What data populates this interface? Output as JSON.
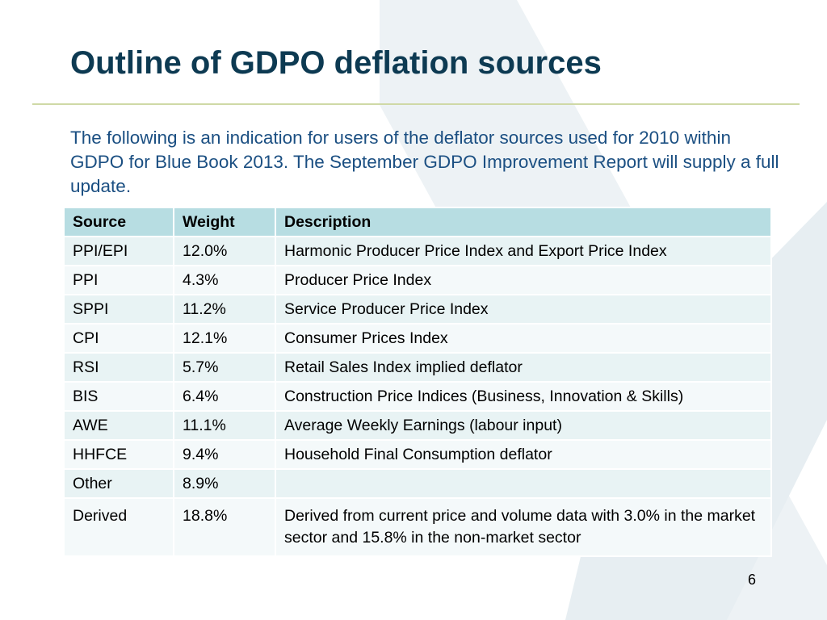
{
  "slide": {
    "title": "Outline of GDPO deflation sources",
    "intro": "The following is an indication for users of the deflator sources used for 2010 within GDPO for Blue Book 2013. The September GDPO Improvement Report will supply a full update.",
    "page_number": "6"
  },
  "table": {
    "headers": [
      "Source",
      "Weight",
      "Description"
    ],
    "rows": [
      {
        "source": "PPI/EPI",
        "weight": "12.0%",
        "description": "Harmonic Producer Price Index and Export Price Index"
      },
      {
        "source": "PPI",
        "weight": "4.3%",
        "description": "Producer Price Index"
      },
      {
        "source": "SPPI",
        "weight": "11.2%",
        "description": "Service Producer Price Index"
      },
      {
        "source": "CPI",
        "weight": "12.1%",
        "description": "Consumer Prices Index"
      },
      {
        "source": "RSI",
        "weight": "5.7%",
        "description": "Retail Sales Index implied deflator"
      },
      {
        "source": "BIS",
        "weight": "6.4%",
        "description": "Construction Price Indices (Business, Innovation & Skills)"
      },
      {
        "source": "AWE",
        "weight": "11.1%",
        "description": "Average Weekly Earnings (labour input)"
      },
      {
        "source": "HHFCE",
        "weight": "9.4%",
        "description": "Household Final Consumption deflator"
      },
      {
        "source": "Other",
        "weight": "8.9%",
        "description": ""
      },
      {
        "source": "Derived",
        "weight": "18.8%",
        "description": "Derived from current price and volume data with 3.0% in the market sector and 15.8% in the non-market sector"
      }
    ]
  },
  "colors": {
    "title": "#0d3a52",
    "intro_text": "#1b4f82",
    "header_fill": "#b7dde2",
    "row_fill": "#e8f3f4",
    "rule": "#cfd9a6"
  }
}
